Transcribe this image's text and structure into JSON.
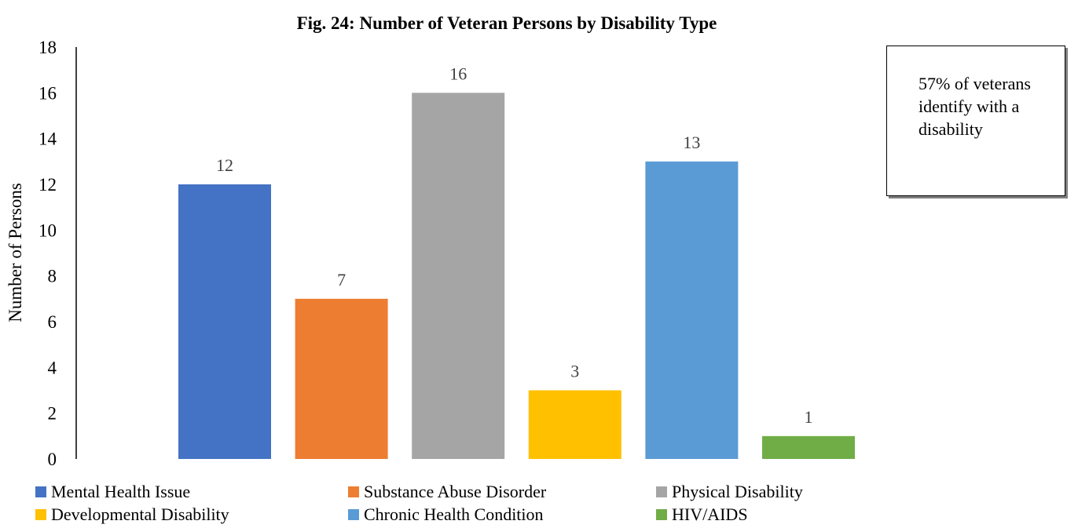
{
  "chart_data": {
    "type": "bar",
    "title": "Fig. 24: Number of Veteran Persons by Disability Type",
    "ylabel": "Number of Persons",
    "xlabel": "",
    "ylim": [
      0,
      18
    ],
    "yticks": [
      "0",
      "2",
      "4",
      "6",
      "8",
      "10",
      "12",
      "14",
      "16",
      "18"
    ],
    "grid": false,
    "legend_position": "bottom",
    "categories": [
      "Mental Health Issue",
      "Substance Abuse Disorder",
      "Physical Disability",
      "Developmental Disability",
      "Chronic Health Condition",
      "HIV/AIDS"
    ],
    "values": [
      12,
      7,
      16,
      3,
      13,
      1
    ],
    "data_labels": [
      "12",
      "7",
      "16",
      "3",
      "13",
      "1"
    ],
    "colors": [
      "#4472c4",
      "#ed7d31",
      "#a5a5a5",
      "#ffc000",
      "#5b9bd5",
      "#70ad47"
    ],
    "annotation": "57% of veterans identify with a disability"
  }
}
